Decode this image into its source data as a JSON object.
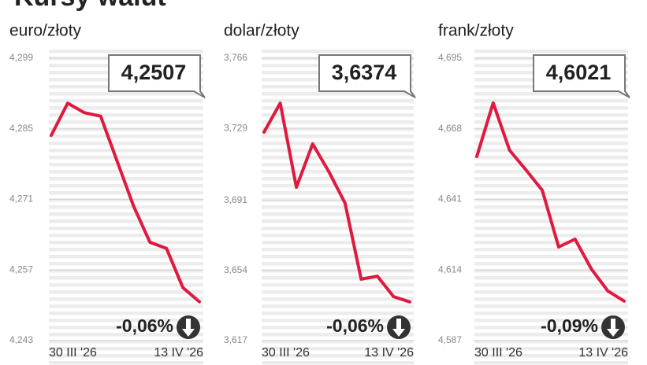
{
  "title": "Kursy walut",
  "chart_data": [
    {
      "type": "line",
      "subtitle": "euro/złoty",
      "categories": [
        "30 III '26",
        null,
        null,
        null,
        null,
        null,
        null,
        null,
        null,
        "13 IV '26"
      ],
      "values": [
        4.2837,
        4.2901,
        4.2882,
        4.2875,
        4.2786,
        4.2697,
        4.2625,
        4.2613,
        4.2535,
        4.2507
      ],
      "color": "#e0193f",
      "ylim": [
        4.243,
        4.299
      ],
      "yticks": [
        {
          "value": 4.243,
          "label": "4,243"
        },
        {
          "value": 4.257,
          "label": "4,257"
        },
        {
          "value": 4.271,
          "label": "4,271"
        },
        {
          "value": 4.285,
          "label": "4,285"
        },
        {
          "value": 4.299,
          "label": "4,299"
        }
      ],
      "grid": true,
      "current_label": "4,2507",
      "change_label": "-0,06%"
    },
    {
      "type": "line",
      "subtitle": "dolar/złoty",
      "categories": [
        "30 III '26",
        null,
        null,
        null,
        null,
        null,
        null,
        null,
        null,
        "13 IV '26"
      ],
      "values": [
        3.727,
        3.7423,
        3.6979,
        3.7208,
        3.7062,
        3.6896,
        3.6494,
        3.651,
        3.6402,
        3.6374
      ],
      "color": "#e0193f",
      "ylim": [
        3.617,
        3.766
      ],
      "yticks": [
        {
          "value": 3.617,
          "label": "3,617"
        },
        {
          "value": 3.654,
          "label": "3,654"
        },
        {
          "value": 3.691,
          "label": "3,691"
        },
        {
          "value": 3.729,
          "label": "3,729"
        },
        {
          "value": 3.766,
          "label": "3,766"
        }
      ],
      "grid": true,
      "current_label": "3,6374",
      "change_label": "-0,06%"
    },
    {
      "type": "line",
      "subtitle": "frank/złoty",
      "categories": [
        "30 III '26",
        null,
        null,
        null,
        null,
        null,
        null,
        null,
        null,
        "13 IV '26"
      ],
      "values": [
        4.6574,
        4.6779,
        4.6598,
        4.6523,
        4.6445,
        4.6228,
        4.6258,
        4.6144,
        4.606,
        4.6021
      ],
      "color": "#e0193f",
      "ylim": [
        4.587,
        4.695
      ],
      "yticks": [
        {
          "value": 4.587,
          "label": "4,587"
        },
        {
          "value": 4.614,
          "label": "4,614"
        },
        {
          "value": 4.641,
          "label": "4,641"
        },
        {
          "value": 4.668,
          "label": "4,668"
        },
        {
          "value": 4.695,
          "label": "4,695"
        }
      ],
      "grid": true,
      "current_label": "4,6021",
      "change_label": "-0,09%"
    }
  ]
}
